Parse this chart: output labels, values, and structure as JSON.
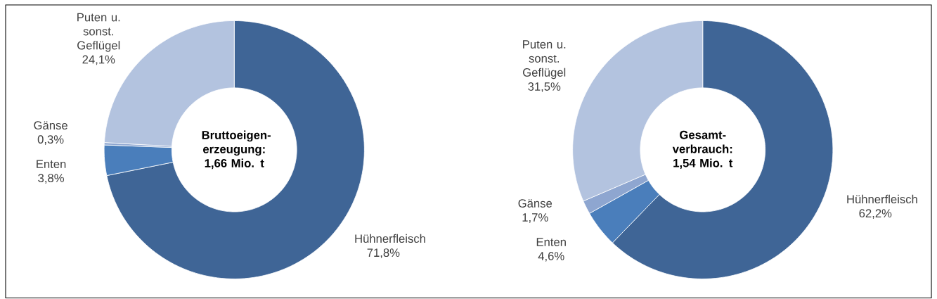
{
  "chart_data": [
    {
      "type": "donut",
      "title": "Bruttoeigen-erzeugung: 1,66 Mio. t",
      "categories": [
        "Hühnerfleisch",
        "Enten",
        "Gänse",
        "Puten u. sonst. Geflügel"
      ],
      "values": [
        71.8,
        3.8,
        0.3,
        24.1
      ],
      "colors": [
        "#3f6596",
        "#4a7ebb",
        "#8ea6d0",
        "#b3c3df"
      ],
      "value_labels": [
        "71,8%",
        "3,8%",
        "0,3%",
        "24,1%"
      ]
    },
    {
      "type": "donut",
      "title": "Gesamt-verbrauch: 1,54 Mio. t",
      "categories": [
        "Hühnerfleisch",
        "Enten",
        "Gänse",
        "Puten u. sonst. Geflügel"
      ],
      "values": [
        62.2,
        4.6,
        1.7,
        31.5
      ],
      "colors": [
        "#3f6596",
        "#4a7ebb",
        "#8ea6d0",
        "#b3c3df"
      ],
      "value_labels": [
        "62,2%",
        "4,6%",
        "1,7%",
        "31,5%"
      ]
    }
  ]
}
